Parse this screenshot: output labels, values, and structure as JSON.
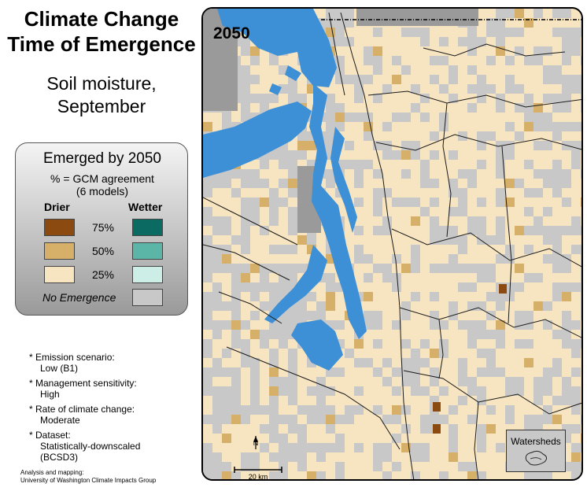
{
  "title": {
    "line1": "Climate Change",
    "line2": "Time of Emergence"
  },
  "subtitle": {
    "line1": "Soil moisture,",
    "line2": "September"
  },
  "legend": {
    "title": "Emerged by 2050",
    "subtitle_line1": "% = GCM agreement",
    "subtitle_line2": "(6 models)",
    "drier_label": "Drier",
    "wetter_label": "Wetter",
    "levels": [
      {
        "label": "75%",
        "drier_color": "#8b4a10",
        "wetter_color": "#0b6b62"
      },
      {
        "label": "50%",
        "drier_color": "#d6b068",
        "wetter_color": "#5cb6a8"
      },
      {
        "label": "25%",
        "drier_color": "#f7e5c1",
        "wetter_color": "#cdeee6"
      }
    ],
    "no_emergence_label": "No Emergence",
    "no_emergence_color": "#c8c8c8"
  },
  "notes": [
    {
      "label": "Emission scenario:",
      "value": "Low (B1)"
    },
    {
      "label": "Management sensitivity:",
      "value": "High"
    },
    {
      "label": "Rate of climate change:",
      "value": "Moderate"
    },
    {
      "label": "Dataset:",
      "value": "Statistically-downscaled",
      "value2": "(BCSD3)"
    }
  ],
  "credit": {
    "line1": "Analysis and mapping:",
    "line2": "University of Washington Climate Impacts Group"
  },
  "map": {
    "year_label": "2050",
    "north_label": "N",
    "scale_label": "20 km",
    "watersheds_label": "Watersheds",
    "colors": {
      "water": "#3d8fd6",
      "land": "#f7e5c1",
      "no_emergence": "#c8c8c8",
      "outside": "#9a9a9a"
    }
  }
}
